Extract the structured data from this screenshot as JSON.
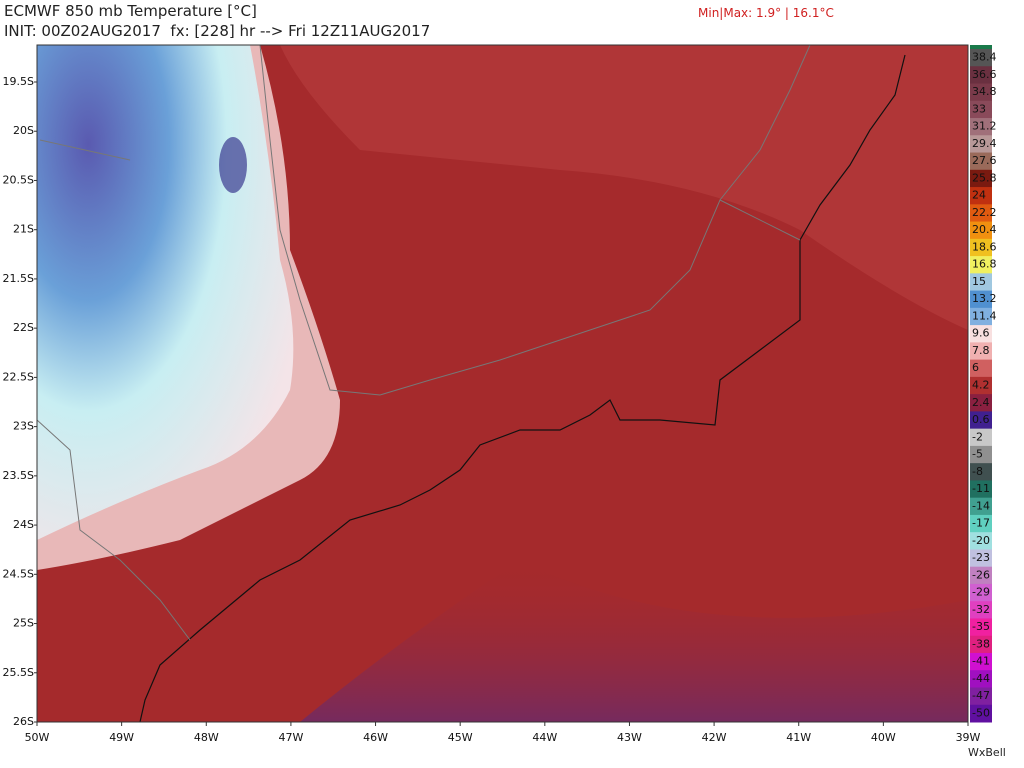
{
  "header": {
    "title": "ECMWF 850 mb Temperature [°C]",
    "init": "INIT: 00Z02AUG2017  fx: [228] hr --> Fri 12Z11AUG2017",
    "minmax": "Min|Max: 1.9° | 16.1°C"
  },
  "map": {
    "lat_labels": [
      "19.5S",
      "20S",
      "20.5S",
      "21S",
      "21.5S",
      "22S",
      "22.5S",
      "23S",
      "23.5S",
      "24S",
      "24.5S",
      "25S",
      "25.5S",
      "26S"
    ],
    "lon_labels": [
      "50W",
      "49W",
      "48W",
      "47W",
      "46W",
      "45W",
      "44W",
      "43W",
      "42W",
      "41W",
      "40W",
      "39W"
    ]
  },
  "legend": {
    "labels": [
      "38.4",
      "36.6",
      "34.8",
      "33",
      "31.2",
      "29.4",
      "27.6",
      "25.8",
      "24",
      "22.2",
      "20.4",
      "18.6",
      "16.8",
      "15",
      "13.2",
      "11.4",
      "9.6",
      "7.8",
      "6",
      "4.2",
      "2.4",
      "0.6",
      "-2",
      "-5",
      "-8",
      "-11",
      "-14",
      "-17",
      "-20",
      "-23",
      "-26",
      "-29",
      "-32",
      "-35",
      "-38",
      "-41",
      "-44",
      "-47",
      "-50"
    ],
    "colors": [
      "#555555",
      "#6a3040",
      "#7a3a4a",
      "#8a4a5a",
      "#a0707a",
      "#b89898",
      "#9a6a5a",
      "#7a1a10",
      "#c03010",
      "#e05a10",
      "#f09010",
      "#f0c020",
      "#f0f060",
      "#a0c8e0",
      "#5090d0",
      "#80b0e0",
      "#f8e0e0",
      "#f0b0b0",
      "#d06060",
      "#b03030",
      "#8a2040",
      "#402090",
      "#c8c8c8",
      "#909090",
      "#405050",
      "#207060",
      "#40a090",
      "#60d0c0",
      "#a0e0e0",
      "#c0c0e0",
      "#c080c0",
      "#d060d0",
      "#e040c0",
      "#f020a0",
      "#e02080",
      "#d010d0",
      "#a010c0",
      "#8020a0",
      "#6010a0"
    ]
  },
  "footer": {
    "credit": "WxBell"
  }
}
